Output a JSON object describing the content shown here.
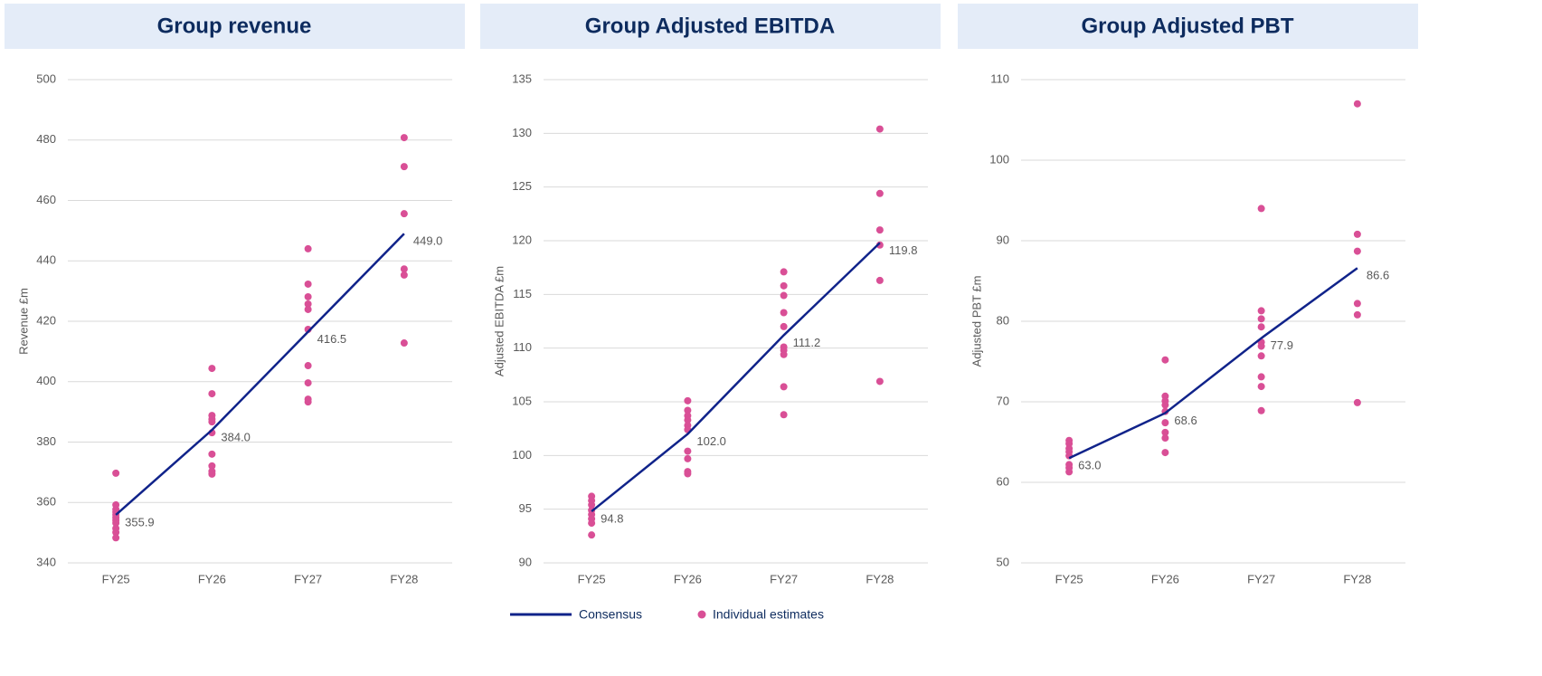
{
  "chart_data": [
    {
      "type": "line",
      "title": "Group revenue",
      "y_label": "Revenue £m",
      "categories": [
        "FY25",
        "FY26",
        "FY27",
        "FY28"
      ],
      "consensus": [
        355.9,
        384.0,
        416.5,
        449.0
      ],
      "value_labels": [
        "355.9",
        "384.0",
        "416.5",
        "449.0"
      ],
      "estimates": [
        [
          369.7,
          359.2,
          357.7,
          356.8,
          355.9,
          355.0,
          354.1,
          353.2,
          351.4,
          350.1,
          348.3
        ],
        [
          404.4,
          396.0,
          388.8,
          387.6,
          386.7,
          383.1,
          376.0,
          372.1,
          370.3,
          369.4
        ],
        [
          444.0,
          432.3,
          428.1,
          425.7,
          423.9,
          417.3,
          405.3,
          399.6,
          394.2,
          393.3
        ],
        [
          480.8,
          471.2,
          455.6,
          437.3,
          435.3,
          412.8
        ]
      ],
      "ylim": [
        340,
        500
      ],
      "yticks": [
        340,
        360,
        380,
        400,
        420,
        440,
        460,
        480,
        500
      ]
    },
    {
      "type": "line",
      "title": "Group Adjusted EBITDA",
      "y_label": "Adjusted EBITDA £m",
      "categories": [
        "FY25",
        "FY26",
        "FY27",
        "FY28"
      ],
      "consensus": [
        94.8,
        102.0,
        111.2,
        119.8
      ],
      "value_labels": [
        "94.8",
        "102.0",
        "111.2",
        "119.8"
      ],
      "estimates": [
        [
          96.2,
          95.8,
          95.4,
          94.9,
          94.5,
          94.1,
          93.7,
          92.6
        ],
        [
          105.1,
          104.2,
          103.7,
          103.3,
          102.8,
          102.4,
          100.4,
          99.7,
          98.5,
          98.3
        ],
        [
          117.1,
          115.8,
          114.9,
          113.3,
          112.0,
          110.1,
          109.8,
          109.4,
          106.4,
          103.8
        ],
        [
          130.4,
          124.4,
          121.0,
          119.6,
          116.3,
          106.9
        ]
      ],
      "ylim": [
        90,
        135
      ],
      "yticks": [
        90,
        95,
        100,
        105,
        110,
        115,
        120,
        125,
        130,
        135
      ]
    },
    {
      "type": "line",
      "title": "Group Adjusted PBT",
      "y_label": "Adjusted PBT £m",
      "categories": [
        "FY25",
        "FY26",
        "FY27",
        "FY28"
      ],
      "consensus": [
        63.0,
        68.6,
        77.9,
        86.6
      ],
      "value_labels": [
        "63.0",
        "68.6",
        "77.9",
        "86.6"
      ],
      "estimates": [
        [
          65.2,
          64.8,
          64.2,
          63.8,
          63.3,
          62.2,
          61.8,
          61.3
        ],
        [
          75.2,
          70.7,
          70.1,
          69.6,
          68.8,
          67.4,
          66.2,
          65.5,
          63.7
        ],
        [
          94.0,
          81.3,
          80.3,
          79.3,
          77.4,
          76.9,
          75.7,
          73.1,
          71.9,
          68.9
        ],
        [
          107.0,
          90.8,
          88.7,
          82.2,
          80.8,
          69.9
        ]
      ],
      "ylim": [
        50,
        110
      ],
      "yticks": [
        50,
        60,
        70,
        80,
        90,
        100,
        110
      ]
    }
  ],
  "legend": {
    "consensus": "Consensus",
    "estimates": "Individual estimates",
    "consensus_color": "#10238a",
    "estimates_color": "#d94f96"
  }
}
